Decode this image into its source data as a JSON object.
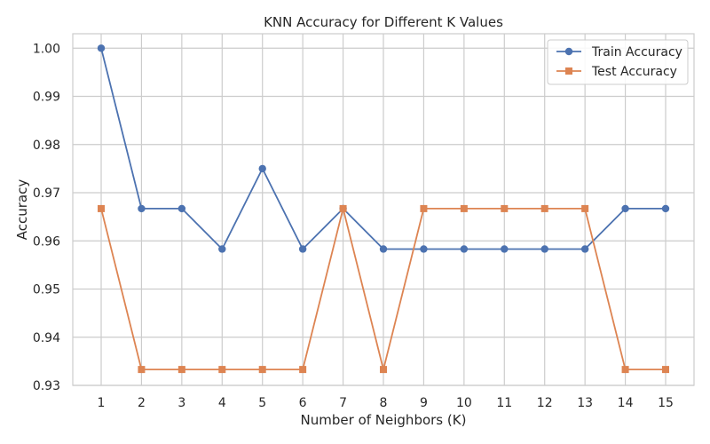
{
  "chart_data": {
    "type": "line",
    "title": "KNN Accuracy for Different K Values",
    "xlabel": "Number of Neighbors (K)",
    "ylabel": "Accuracy",
    "x": [
      1,
      2,
      3,
      4,
      5,
      6,
      7,
      8,
      9,
      10,
      11,
      12,
      13,
      14,
      15
    ],
    "xticks": [
      "1",
      "2",
      "3",
      "4",
      "5",
      "6",
      "7",
      "8",
      "9",
      "10",
      "11",
      "12",
      "13",
      "14",
      "15"
    ],
    "ylim": [
      0.93,
      1.003
    ],
    "yticks": [
      "0.93",
      "0.94",
      "0.95",
      "0.96",
      "0.97",
      "0.98",
      "0.99",
      "1.00"
    ],
    "grid": true,
    "legend_position": "top-right",
    "series": [
      {
        "name": "Train Accuracy",
        "color": "#4c72b0",
        "marker": "circle",
        "values": [
          1.0,
          0.9667,
          0.9667,
          0.9583,
          0.975,
          0.9583,
          0.9667,
          0.9583,
          0.9583,
          0.9583,
          0.9583,
          0.9583,
          0.9583,
          0.9667,
          0.9667
        ]
      },
      {
        "name": "Test Accuracy",
        "color": "#dd8452",
        "marker": "square",
        "values": [
          0.9667,
          0.9333,
          0.9333,
          0.9333,
          0.9333,
          0.9333,
          0.9667,
          0.9333,
          0.9667,
          0.9667,
          0.9667,
          0.9667,
          0.9667,
          0.9333,
          0.9333
        ]
      }
    ]
  }
}
